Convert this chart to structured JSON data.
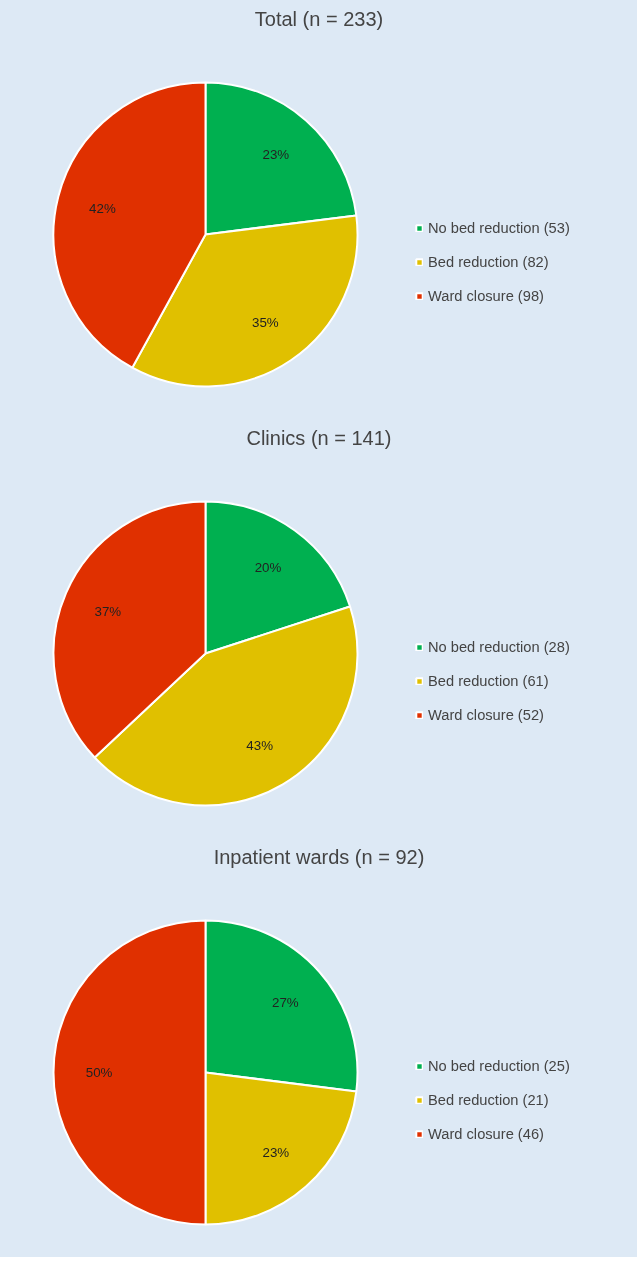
{
  "chart_data": [
    {
      "type": "pie",
      "title": "Total (n = 233)",
      "categories": [
        "No bed reduction (53)",
        "Bed reduction (82)",
        "Ward closure (98)"
      ],
      "values": [
        23,
        35,
        42
      ],
      "value_labels": [
        "23%",
        "35%",
        "42%"
      ],
      "colors": [
        "#00b050",
        "#e0c000",
        "#e03000"
      ],
      "legend": "right"
    },
    {
      "type": "pie",
      "title": "Clinics (n = 141)",
      "categories": [
        "No bed reduction (28)",
        "Bed reduction (61)",
        "Ward closure (52)"
      ],
      "values": [
        20,
        43,
        37
      ],
      "value_labels": [
        "20%",
        "43%",
        "37%"
      ],
      "colors": [
        "#00b050",
        "#e0c000",
        "#e03000"
      ],
      "legend": "right"
    },
    {
      "type": "pie",
      "title": "Inpatient wards (n = 92)",
      "categories": [
        "No bed reduction (25)",
        "Bed reduction (21)",
        "Ward closure (46)"
      ],
      "values": [
        27,
        23,
        50
      ],
      "value_labels": [
        "27%",
        "23%",
        "50%"
      ],
      "colors": [
        "#00b050",
        "#e0c000",
        "#e03000"
      ],
      "legend": "right"
    }
  ]
}
